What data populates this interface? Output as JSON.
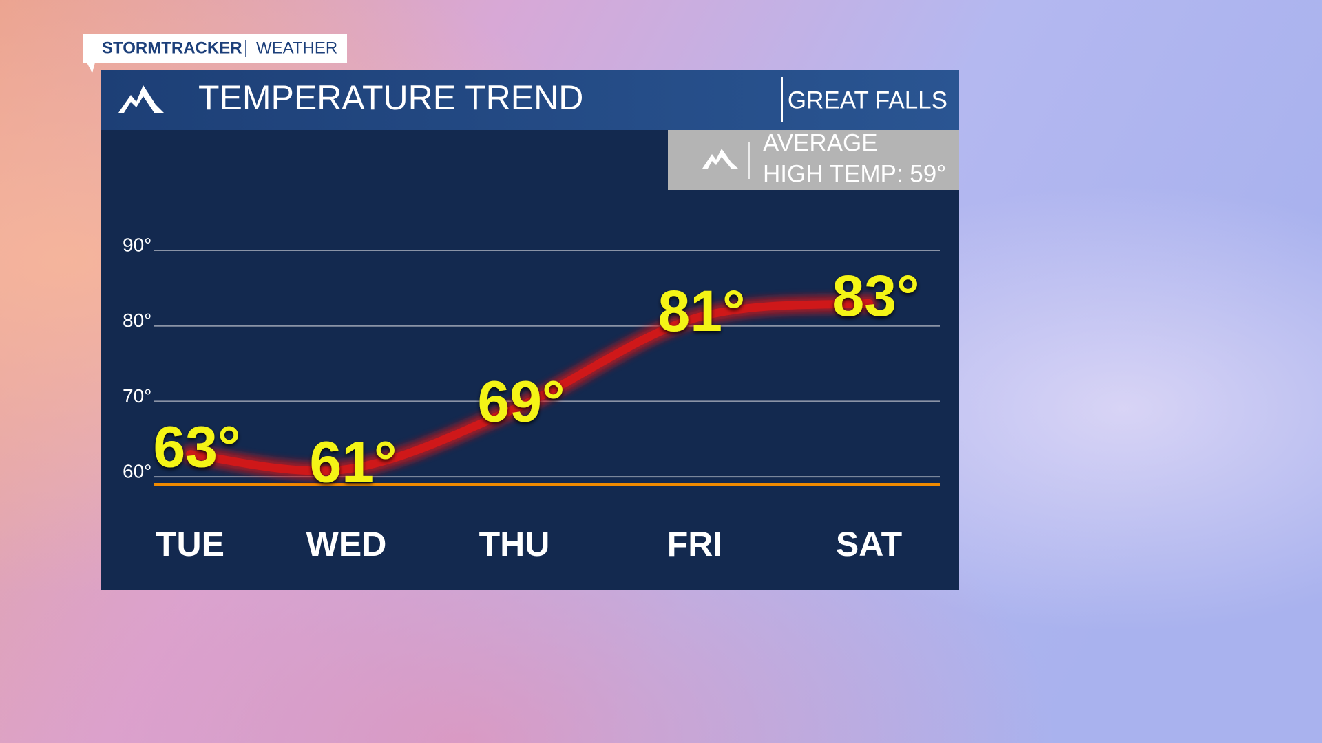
{
  "brand": {
    "name": "STORMTRACKER",
    "section": "WEATHER"
  },
  "chart_data": {
    "type": "line",
    "title": "TEMPERATURE TREND",
    "location": "GREAT FALLS",
    "categories": [
      "TUE",
      "WED",
      "THU",
      "FRI",
      "SAT"
    ],
    "values": [
      63,
      61,
      69,
      81,
      83
    ],
    "value_labels": [
      "63°",
      "61°",
      "69°",
      "81°",
      "83°"
    ],
    "color": "#d81818",
    "label_color": "#f4f414",
    "ylim": [
      58,
      90
    ],
    "yticks": [
      {
        "value": 60,
        "label": "60°"
      },
      {
        "value": 70,
        "label": "70°"
      },
      {
        "value": 80,
        "label": "80°"
      },
      {
        "value": 90,
        "label": "90°"
      }
    ],
    "grid": true,
    "average": {
      "label": [
        "AVERAGE",
        "HIGH TEMP: 59°"
      ],
      "value": 59,
      "color": "#f08a00"
    }
  }
}
